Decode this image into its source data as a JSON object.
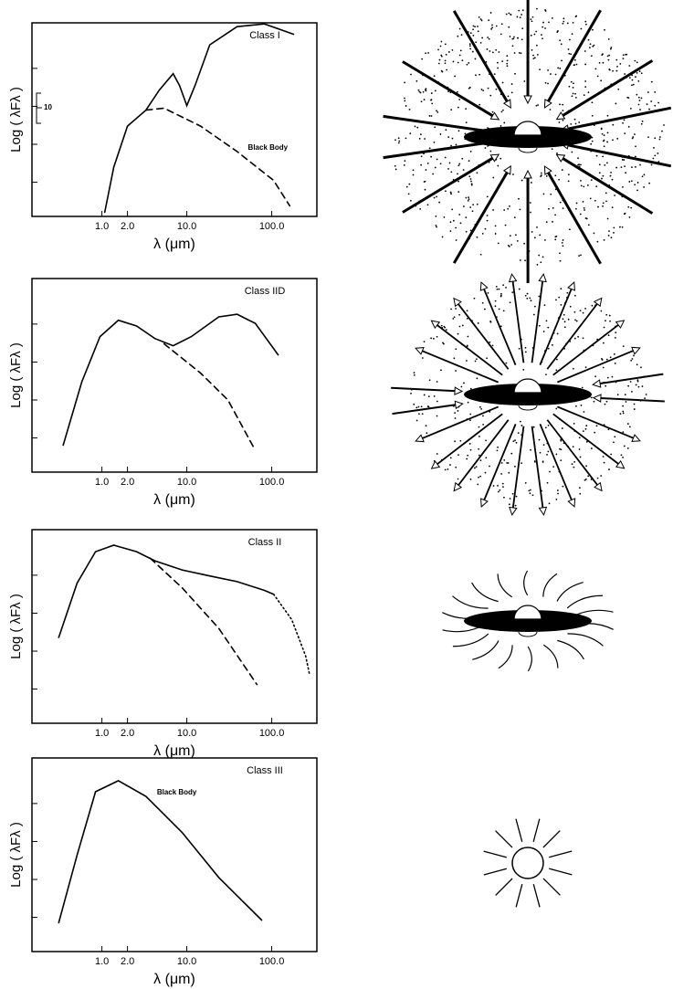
{
  "chart_data": [
    {
      "type": "line",
      "title": "Class I",
      "xlabel": "λ (μm)",
      "ylabel": "Log ( λFλ )",
      "xscale": "log",
      "xlim": [
        0.15,
        340
      ],
      "xticks": [
        {
          "value": 1,
          "label": "1.0"
        },
        {
          "value": 2,
          "label": "2.0"
        },
        {
          "value": 10,
          "label": "10.0"
        },
        {
          "value": 100,
          "label": "100.0"
        }
      ],
      "ylim": [
        0.1,
        5.2
      ],
      "yticks": [
        1,
        2,
        3,
        4
      ],
      "scale_label": "10",
      "series": [
        {
          "color": "#000000",
          "dash": "solid",
          "x": [
            1.08,
            1.38,
            2.0,
            3.3,
            4.75,
            6.9,
            8.2,
            10,
            12.5,
            18.6,
            39,
            82,
            181
          ],
          "values": [
            0.21,
            1.4,
            2.48,
            2.9,
            3.43,
            3.86,
            3.55,
            3.02,
            3.55,
            4.62,
            5.1,
            5.17,
            4.9
          ]
        },
        {
          "name": "Black Body",
          "color": "#000000",
          "dash": "dashed",
          "x": [
            3.3,
            5.4,
            14.5,
            39,
            105,
            163
          ],
          "values": [
            2.9,
            2.95,
            2.48,
            1.81,
            1.05,
            0.38
          ]
        }
      ]
    },
    {
      "type": "line",
      "title": "Class IID",
      "xlabel": "λ (μm)",
      "ylabel": "Log ( λFλ )",
      "xscale": "log",
      "xlim": [
        0.15,
        340
      ],
      "xticks": [
        {
          "value": 1,
          "label": "1.0"
        },
        {
          "value": 2,
          "label": "2.0"
        },
        {
          "value": 10,
          "label": "10.0"
        },
        {
          "value": 100,
          "label": "100.0"
        }
      ],
      "ylim": [
        0.1,
        5.2
      ],
      "yticks": [
        1,
        2,
        3,
        4
      ],
      "series": [
        {
          "color": "#000000",
          "dash": "solid",
          "x": [
            0.35,
            0.58,
            0.95,
            1.56,
            2.56,
            4.2,
            6.9,
            11.3,
            23.8,
            39,
            64,
            119
          ],
          "values": [
            0.81,
            2.48,
            3.67,
            4.1,
            3.95,
            3.62,
            3.43,
            3.67,
            4.19,
            4.26,
            4.02,
            3.19
          ]
        },
        {
          "color": "#000000",
          "dash": "dashed",
          "x": [
            5.4,
            14.5,
            30.5,
            61
          ],
          "values": [
            3.48,
            2.71,
            2.0,
            0.76
          ]
        }
      ]
    },
    {
      "type": "line",
      "title": "Class II",
      "xlabel": "λ (μm)",
      "ylabel": "Log ( λFλ )",
      "xscale": "log",
      "xlim": [
        0.15,
        340
      ],
      "xticks": [
        {
          "value": 1,
          "label": "1.0"
        },
        {
          "value": 2,
          "label": "2.0"
        },
        {
          "value": 10,
          "label": "10.0"
        },
        {
          "value": 100,
          "label": "100.0"
        }
      ],
      "ylim": [
        0.1,
        5.2
      ],
      "yticks": [
        1,
        2,
        3,
        4
      ],
      "series": [
        {
          "color": "#000000",
          "dash": "solid",
          "x": [
            0.31,
            0.51,
            0.84,
            1.38,
            2.56,
            4.2,
            8.8,
            18.6,
            39,
            82,
            105
          ],
          "values": [
            2.36,
            3.79,
            4.62,
            4.79,
            4.62,
            4.38,
            4.14,
            3.98,
            3.83,
            3.6,
            3.5
          ]
        },
        {
          "color": "#000000",
          "dash": "dotted",
          "x": [
            105,
            172,
            250,
            280
          ],
          "values": [
            3.5,
            2.83,
            1.88,
            1.36
          ]
        },
        {
          "color": "#000000",
          "dash": "dashed",
          "x": [
            3.7,
            8.8,
            23.8,
            67
          ],
          "values": [
            4.45,
            3.67,
            2.6,
            1.12
          ]
        }
      ]
    },
    {
      "type": "line",
      "title": "Class III",
      "xlabel": "λ (μm)",
      "ylabel": "Log ( λFλ )",
      "xscale": "log",
      "xlim": [
        0.15,
        340
      ],
      "xticks": [
        {
          "value": 1,
          "label": "1.0"
        },
        {
          "value": 2,
          "label": "2.0"
        },
        {
          "value": 10,
          "label": "10.0"
        },
        {
          "value": 100,
          "label": "100.0"
        }
      ],
      "ylim": [
        0.1,
        5.2
      ],
      "yticks": [
        1,
        2,
        3,
        4
      ],
      "series": [
        {
          "name": "Black Body",
          "color": "#000000",
          "dash": "solid",
          "x": [
            0.31,
            0.51,
            0.84,
            1.56,
            3.3,
            8.8,
            23.8,
            76
          ],
          "values": [
            0.86,
            2.64,
            4.31,
            4.6,
            4.19,
            3.24,
            2.05,
            0.93
          ]
        }
      ]
    }
  ]
}
